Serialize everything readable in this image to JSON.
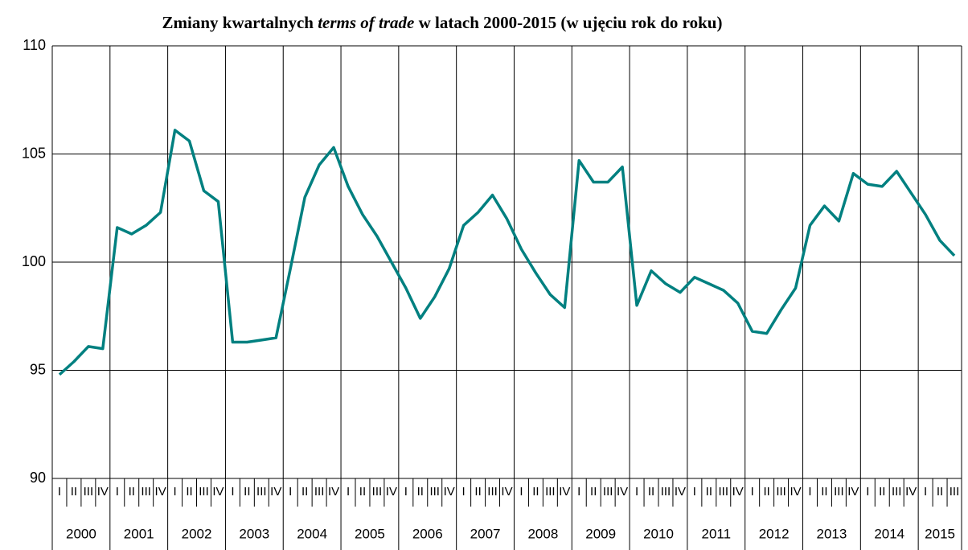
{
  "chart_data": {
    "type": "line",
    "title": [
      "Zmiany kwartalnych",
      "terms of trade",
      "w latach 2000-2015 (w ujęciu rok do roku)"
    ],
    "categories": [
      "I",
      "II",
      "III",
      "IV",
      "I",
      "II",
      "III",
      "IV",
      "I",
      "II",
      "III",
      "IV",
      "I",
      "II",
      "III",
      "IV",
      "I",
      "II",
      "III",
      "IV",
      "I",
      "II",
      "III",
      "IV",
      "I",
      "II",
      "III",
      "IV",
      "I",
      "II",
      "III",
      "IV",
      "I",
      "II",
      "III",
      "IV",
      "I",
      "II",
      "III",
      "IV",
      "I",
      "II",
      "III",
      "IV",
      "I",
      "II",
      "III",
      "IV",
      "I",
      "II",
      "III",
      "IV",
      "I",
      "II",
      "III",
      "IV",
      "I",
      "II",
      "III",
      "IV",
      "I",
      "II",
      "III"
    ],
    "years": [
      "2000",
      "2001",
      "2002",
      "2003",
      "2004",
      "2005",
      "2006",
      "2007",
      "2008",
      "2009",
      "2010",
      "2011",
      "2012",
      "2013",
      "2014",
      "2015"
    ],
    "series": [
      {
        "name": "terms of trade",
        "color": "#008080",
        "values": [
          94.8,
          95.4,
          96.1,
          96.0,
          101.6,
          101.3,
          101.7,
          102.3,
          106.1,
          105.6,
          103.3,
          102.8,
          96.3,
          96.3,
          96.4,
          96.5,
          99.7,
          103.0,
          104.5,
          105.3,
          103.5,
          102.2,
          101.2,
          100.0,
          98.8,
          97.4,
          98.4,
          99.7,
          101.7,
          102.3,
          103.1,
          102.0,
          100.6,
          99.5,
          98.5,
          97.9,
          104.7,
          103.7,
          103.7,
          104.4,
          98.0,
          99.6,
          99.0,
          98.6,
          99.3,
          99.0,
          98.7,
          98.1,
          96.8,
          96.7,
          97.8,
          98.8,
          101.7,
          102.6,
          101.9,
          104.1,
          103.6,
          103.5,
          104.2,
          103.2,
          102.2,
          101.0,
          100.3
        ]
      }
    ],
    "ylim": [
      90,
      110
    ],
    "yticks": [
      90,
      95,
      100,
      105,
      110
    ],
    "grid": true
  }
}
